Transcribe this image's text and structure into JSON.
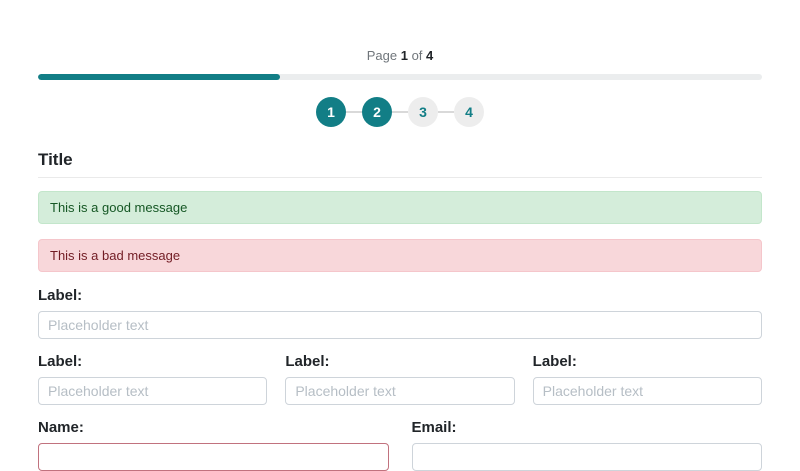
{
  "page_indicator": {
    "prefix": "Page",
    "current_page": "1",
    "of_label": "of",
    "total_pages": "4"
  },
  "progress": {
    "percent": 33.4
  },
  "steps": [
    {
      "number": "1",
      "state": "active"
    },
    {
      "number": "2",
      "state": "active"
    },
    {
      "number": "3",
      "state": "inactive"
    },
    {
      "number": "4",
      "state": "inactive"
    }
  ],
  "form": {
    "title": "Title",
    "messages": {
      "success": "This is a good message",
      "error": "This is a bad message"
    },
    "full_width_field": {
      "label": "Label:",
      "placeholder": "Placeholder text",
      "value": ""
    },
    "triple_fields": [
      {
        "label": "Label:",
        "placeholder": "Placeholder text",
        "value": ""
      },
      {
        "label": "Label:",
        "placeholder": "Placeholder text",
        "value": ""
      },
      {
        "label": "Label:",
        "placeholder": "Placeholder text",
        "value": ""
      }
    ],
    "contact_fields": [
      {
        "label": "Name:",
        "placeholder": "",
        "value": "",
        "invalid": true
      },
      {
        "label": "Email:",
        "placeholder": "",
        "value": "",
        "invalid": false
      }
    ]
  },
  "colors": {
    "accent_teal": "#127e86",
    "progress_track": "#ebedee",
    "inactive_circle_bg": "#ededed",
    "success_bg": "#d4edda",
    "success_border": "#c3e6cb",
    "success_text": "#155724",
    "danger_bg": "#f8d7da",
    "danger_border": "#f5c6cb",
    "danger_text": "#721c24",
    "input_border": "#ced4da",
    "invalid_input_border": "#c1727e",
    "placeholder_text": "#b6bec5"
  }
}
